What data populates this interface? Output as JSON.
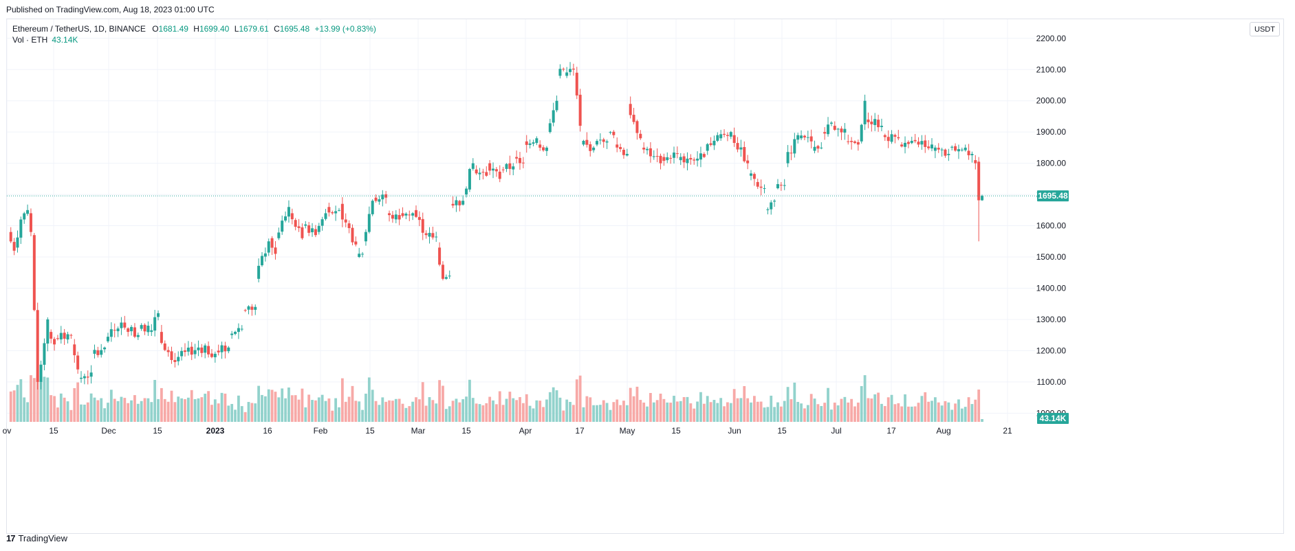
{
  "header": {
    "published": "Published on TradingView.com, Aug 18, 2023 01:00 UTC"
  },
  "legend": {
    "symbol": "Ethereum / TetherUS, 1D, BINANCE",
    "open_label": "O",
    "open": "1681.49",
    "high_label": "H",
    "high": "1699.40",
    "low_label": "L",
    "low": "1679.61",
    "close_label": "C",
    "close": "1695.48",
    "change": "+13.99 (+0.83%)",
    "volume_label": "Vol · ETH",
    "volume": "43.14K"
  },
  "currency_button": "USDT",
  "footer": {
    "logo": "17",
    "brand": "TradingView"
  },
  "colors": {
    "up": "#26a69a",
    "down": "#ef5350",
    "up_volume": "#92d2cc",
    "down_volume": "#f7a9a7",
    "grid": "#f0f3fa",
    "price_line": "#26a69a",
    "price_badge": "#26a69a"
  },
  "chart_data": {
    "type": "candlestick",
    "symbol": "ETH/USDT",
    "interval": "1D",
    "exchange": "BINANCE",
    "y_ticks": [
      1000,
      1100,
      1200,
      1300,
      1400,
      1500,
      1600,
      1700,
      1800,
      1900,
      2000,
      2100,
      2200
    ],
    "y_tick_labels": [
      "1000.00",
      "1100.00",
      "1200.00",
      "1300.00",
      "1400.00",
      "1500.00",
      "1600.00",
      "1700.00",
      "1800.00",
      "1900.00",
      "2000.00",
      "2100.00",
      "2200.00"
    ],
    "ylim": [
      958,
      2245
    ],
    "x_tick_labels": [
      "ov",
      "15",
      "Dec",
      "15",
      "2023",
      "16",
      "Feb",
      "15",
      "Mar",
      "15",
      "Apr",
      "17",
      "May",
      "15",
      "Jun",
      "15",
      "Jul",
      "17",
      "Aug",
      "21"
    ],
    "last_price": "1695.48",
    "last_volume": "43.14K",
    "grid": true,
    "anchors": [
      [
        "2022-11-01",
        1580,
        1520
      ],
      [
        "2022-11-03",
        1530,
        1620
      ],
      [
        "2022-11-05",
        1620,
        1650
      ],
      [
        "2022-11-07",
        1640,
        1580
      ],
      [
        "2022-11-08",
        1570,
        1330
      ],
      [
        "2022-11-09",
        1330,
        1100
      ],
      [
        "2022-11-10",
        1100,
        1300
      ],
      [
        "2022-11-13",
        1260,
        1220
      ],
      [
        "2022-11-15",
        1240,
        1250
      ],
      [
        "2022-11-20",
        1220,
        1140
      ],
      [
        "2022-11-22",
        1110,
        1130
      ],
      [
        "2022-11-26",
        1190,
        1210
      ],
      [
        "2022-11-30",
        1230,
        1290
      ],
      [
        "2022-12-05",
        1290,
        1250
      ],
      [
        "2022-12-10",
        1270,
        1280
      ],
      [
        "2022-12-13",
        1260,
        1320
      ],
      [
        "2022-12-16",
        1260,
        1170
      ],
      [
        "2022-12-20",
        1170,
        1210
      ],
      [
        "2022-12-28",
        1210,
        1190
      ],
      [
        "2023-01-02",
        1200,
        1210
      ],
      [
        "2023-01-06",
        1250,
        1270
      ],
      [
        "2023-01-10",
        1330,
        1340
      ],
      [
        "2023-01-14",
        1430,
        1550
      ],
      [
        "2023-01-18",
        1560,
        1510
      ],
      [
        "2023-01-20",
        1560,
        1660
      ],
      [
        "2023-01-24",
        1640,
        1560
      ],
      [
        "2023-01-28",
        1600,
        1570
      ],
      [
        "2023-02-01",
        1580,
        1640
      ],
      [
        "2023-02-04",
        1660,
        1650
      ],
      [
        "2023-02-08",
        1670,
        1620
      ],
      [
        "2023-02-09",
        1620,
        1540
      ],
      [
        "2023-02-13",
        1500,
        1510
      ],
      [
        "2023-02-15",
        1550,
        1680
      ],
      [
        "2023-02-18",
        1690,
        1690
      ],
      [
        "2023-02-22",
        1640,
        1620
      ],
      [
        "2023-02-26",
        1640,
        1640
      ],
      [
        "2023-03-02",
        1650,
        1570
      ],
      [
        "2023-03-06",
        1565,
        1565
      ],
      [
        "2023-03-09",
        1530,
        1430
      ],
      [
        "2023-03-11",
        1430,
        1440
      ],
      [
        "2023-03-13",
        1670,
        1680
      ],
      [
        "2023-03-17",
        1700,
        1800
      ],
      [
        "2023-03-20",
        1780,
        1760
      ],
      [
        "2023-03-24",
        1800,
        1750
      ],
      [
        "2023-03-28",
        1780,
        1790
      ],
      [
        "2023-04-01",
        1820,
        1800
      ],
      [
        "2023-04-04",
        1870,
        1880
      ],
      [
        "2023-04-08",
        1860,
        1850
      ],
      [
        "2023-04-11",
        1900,
        2000
      ],
      [
        "2023-04-14",
        2080,
        2100
      ],
      [
        "2023-04-16",
        2080,
        2100
      ],
      [
        "2023-04-19",
        2090,
        1920
      ],
      [
        "2023-04-21",
        1860,
        1850
      ],
      [
        "2023-04-25",
        1860,
        1870
      ],
      [
        "2023-04-29",
        1900,
        1890
      ],
      [
        "2023-05-01",
        1860,
        1830
      ],
      [
        "2023-05-05",
        1990,
        1880
      ],
      [
        "2023-05-09",
        1850,
        1800
      ],
      [
        "2023-05-15",
        1820,
        1830
      ],
      [
        "2023-05-20",
        1810,
        1820
      ],
      [
        "2023-05-28",
        1840,
        1890
      ],
      [
        "2023-06-01",
        1880,
        1900
      ],
      [
        "2023-06-05",
        1890,
        1800
      ],
      [
        "2023-06-10",
        1760,
        1750
      ],
      [
        "2023-06-12",
        1740,
        1720
      ],
      [
        "2023-06-15",
        1650,
        1680
      ],
      [
        "2023-06-18",
        1720,
        1730
      ],
      [
        "2023-06-21",
        1800,
        1890
      ],
      [
        "2023-06-25",
        1880,
        1870
      ],
      [
        "2023-06-29",
        1840,
        1850
      ],
      [
        "2023-07-02",
        1900,
        1930
      ],
      [
        "2023-07-05",
        1920,
        1910
      ],
      [
        "2023-07-09",
        1870,
        1860
      ],
      [
        "2023-07-13",
        1870,
        2000
      ],
      [
        "2023-07-15",
        1940,
        1920
      ],
      [
        "2023-07-20",
        1890,
        1880
      ],
      [
        "2023-07-25",
        1860,
        1860
      ],
      [
        "2023-07-31",
        1860,
        1860
      ],
      [
        "2023-08-04",
        1840,
        1830
      ],
      [
        "2023-08-09",
        1850,
        1850
      ],
      [
        "2023-08-14",
        1840,
        1830
      ],
      [
        "2023-08-16",
        1810,
        1800
      ]
    ],
    "last_candles": [
      [
        "2023-08-17",
        1805,
        1820,
        1550,
        1681.49
      ],
      [
        "2023-08-18",
        1681.49,
        1699.4,
        1679.61,
        1695.48
      ]
    ],
    "volume_pattern": "higher on sell-off days (early Nov 2022, mid-Mar 2023, mid-Apr 2023, Aug 17 2023); baseline otherwise"
  }
}
